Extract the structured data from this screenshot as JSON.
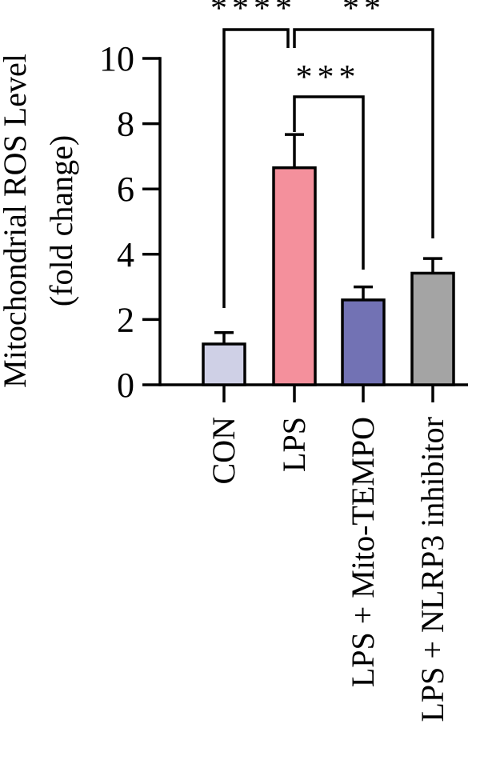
{
  "chart_data": {
    "type": "bar",
    "ylabel_lines": [
      "Mitochondrial ROS Level",
      "(fold change)"
    ],
    "categories": [
      "CON",
      "LPS",
      "LPS + Mito-TEMPO",
      "LPS + NLRP3 inhibitor"
    ],
    "values": [
      1.25,
      6.65,
      2.6,
      3.42
    ],
    "errors": [
      0.35,
      1.02,
      0.4,
      0.45
    ],
    "colors": [
      "#cfd0e6",
      "#f4909c",
      "#7272b4",
      "#a4a4a4"
    ],
    "ylim": [
      0,
      10
    ],
    "yticks": [
      0,
      2,
      4,
      6,
      8,
      10
    ],
    "significance": [
      {
        "from": 0,
        "to": 1,
        "label": "****"
      },
      {
        "from": 1,
        "to": 3,
        "label": "**"
      },
      {
        "from": 1,
        "to": 2,
        "label": "***"
      }
    ],
    "grid": false,
    "legend": "none"
  }
}
